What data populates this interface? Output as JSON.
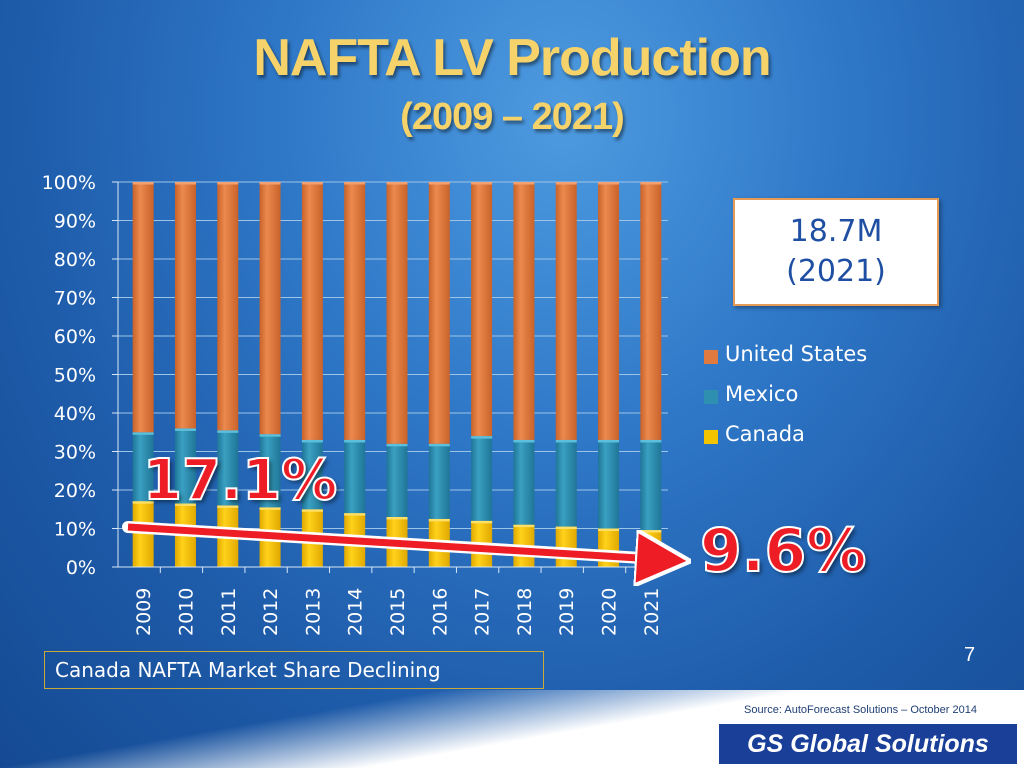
{
  "title": "NAFTA LV Production",
  "subtitle": "(2009 – 2021)",
  "callout": {
    "line1": "18.7M",
    "line2": "(2021)"
  },
  "annotations": {
    "start_share": "17.1%",
    "end_share": "9.6%"
  },
  "note": "Canada NAFTA Market Share Declining",
  "page_number": "7",
  "source": "Source: AutoForecast Solutions – October 2014",
  "brand": "GS Global Solutions",
  "colors": {
    "united_states": "#e07a3e",
    "mexico": "#2f8fb1",
    "canada": "#f5c400",
    "annotation_red": "#ee1c24",
    "callout_text": "#1f4fa3"
  },
  "chart_data": {
    "type": "bar",
    "stacked": true,
    "percent_stacked": true,
    "categories": [
      "2009",
      "2010",
      "2011",
      "2012",
      "2013",
      "2014",
      "2015",
      "2016",
      "2017",
      "2018",
      "2019",
      "2020",
      "2021"
    ],
    "series": [
      {
        "name": "Canada",
        "values": [
          17.1,
          16.5,
          16.0,
          15.5,
          15.0,
          14.0,
          13.0,
          12.5,
          12.0,
          11.0,
          10.5,
          10.0,
          9.6
        ]
      },
      {
        "name": "Mexico",
        "values": [
          17.9,
          19.5,
          19.5,
          19.0,
          18.0,
          19.0,
          19.0,
          19.5,
          22.0,
          22.0,
          22.5,
          23.0,
          23.4
        ]
      },
      {
        "name": "United States",
        "values": [
          65.0,
          64.0,
          64.5,
          65.5,
          67.0,
          67.0,
          68.0,
          68.0,
          66.0,
          67.0,
          67.0,
          67.0,
          67.0
        ]
      }
    ],
    "y_ticks": [
      "0%",
      "10%",
      "20%",
      "30%",
      "40%",
      "50%",
      "60%",
      "70%",
      "80%",
      "90%",
      "100%"
    ],
    "ylim": [
      0,
      100
    ],
    "legend_position": "right",
    "legend_order": [
      "United States",
      "Mexico",
      "Canada"
    ],
    "grid": true
  }
}
